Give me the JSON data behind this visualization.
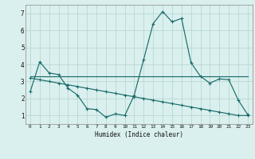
{
  "title": "",
  "xlabel": "Humidex (Indice chaleur)",
  "background_color": "#daf0ee",
  "grid_color": "#b8d8d4",
  "line_color": "#1a6b6b",
  "xlim": [
    -0.5,
    23.5
  ],
  "ylim": [
    0.5,
    7.5
  ],
  "xticks": [
    0,
    1,
    2,
    3,
    4,
    5,
    6,
    7,
    8,
    9,
    10,
    11,
    12,
    13,
    14,
    15,
    16,
    17,
    18,
    19,
    20,
    21,
    22,
    23
  ],
  "yticks": [
    1,
    2,
    3,
    4,
    5,
    6,
    7
  ],
  "series1_x": [
    0,
    1,
    2,
    3,
    4,
    5,
    6,
    7,
    8,
    9,
    10,
    11,
    12,
    13,
    14,
    15,
    16,
    17,
    18,
    19,
    20,
    21,
    22,
    23
  ],
  "series1_y": [
    2.4,
    4.15,
    3.5,
    3.4,
    2.6,
    2.2,
    1.4,
    1.35,
    0.9,
    1.1,
    1.0,
    2.2,
    4.3,
    6.4,
    7.1,
    6.5,
    6.7,
    4.1,
    3.3,
    2.9,
    3.15,
    3.1,
    1.9,
    1.05
  ],
  "series2_x": [
    0,
    23
  ],
  "series2_y": [
    3.3,
    3.3
  ],
  "series3_x": [
    0,
    1,
    2,
    3,
    4,
    5,
    6,
    7,
    8,
    9,
    10,
    11,
    12,
    13,
    14,
    15,
    16,
    17,
    18,
    19,
    20,
    21,
    22,
    23
  ],
  "series3_y": [
    3.2,
    3.1,
    3.0,
    2.9,
    2.8,
    2.7,
    2.6,
    2.5,
    2.4,
    2.3,
    2.2,
    2.1,
    2.0,
    1.9,
    1.8,
    1.7,
    1.6,
    1.5,
    1.4,
    1.3,
    1.2,
    1.1,
    1.0,
    1.0
  ]
}
